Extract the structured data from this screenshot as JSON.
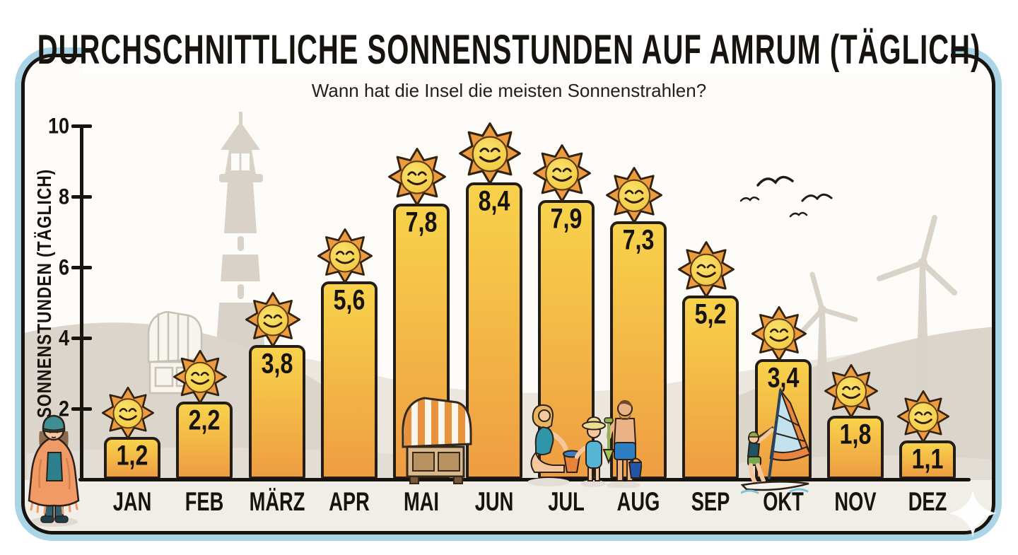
{
  "header": {
    "title": "DURCHSCHNITTLICHE SONNENSTUNDEN AUF AMRUM (TÄGLICH)",
    "subtitle": "Wann hat die Insel die meisten Sonnenstrahlen?"
  },
  "chart_data": {
    "type": "bar",
    "title": "Durchschnittliche Sonnenstunden auf Amrum (täglich)",
    "subtitle": "Wann hat die Insel die meisten Sonnenstrahlen?",
    "xlabel": "",
    "ylabel": "SONNENSTUNDEN (TÄGLICH)",
    "ylim": [
      0,
      10
    ],
    "yticks": [
      0,
      2,
      4,
      6,
      8,
      10
    ],
    "grid": false,
    "legend": null,
    "categories": [
      "JAN",
      "FEB",
      "MÄRZ",
      "APR",
      "MAI",
      "JUN",
      "JUL",
      "AUG",
      "SEP",
      "OKT",
      "NOV",
      "DEZ"
    ],
    "category_slugs": [
      "jan",
      "feb",
      "maerz",
      "apr",
      "mai",
      "jun",
      "jul",
      "aug",
      "sep",
      "okt",
      "nov",
      "dez"
    ],
    "values": [
      1.2,
      2.2,
      3.8,
      5.6,
      7.8,
      8.4,
      7.9,
      7.3,
      5.2,
      3.4,
      1.8,
      1.1
    ],
    "value_labels": [
      "1,2",
      "2,2",
      "3,8",
      "5,6",
      "7,8",
      "8,4",
      "7,9",
      "7,3",
      "5,2",
      "3,4",
      "1,8",
      "1,1"
    ],
    "bar_marker_icon": "smiling-sun-icon"
  },
  "colors": {
    "bar_top": "#F8D24B",
    "bar_bottom": "#EE9D42",
    "bar_outline": "#241D15",
    "sun_ray": "#EC9C3F",
    "sun_face": "#F6CE47",
    "frame_line": "#17130E",
    "frame_accent": "#A9D5E7",
    "text": "#17130E",
    "dune_light": "#EBE6DE",
    "dune_medium": "#DBD5CC",
    "sand_ground": "#F1EDE7",
    "silhouette_gray": "#D8D2C9"
  },
  "illustrations": [
    {
      "name": "lighthouse-icon"
    },
    {
      "name": "ghost-beach-chair-icon"
    },
    {
      "name": "wind-turbines-icon"
    },
    {
      "name": "seagulls-icon"
    },
    {
      "name": "beach-chair-icon"
    },
    {
      "name": "beach-family-icon"
    },
    {
      "name": "windsurfer-icon"
    },
    {
      "name": "cold-person-icon"
    },
    {
      "name": "sparkle-icon"
    }
  ]
}
